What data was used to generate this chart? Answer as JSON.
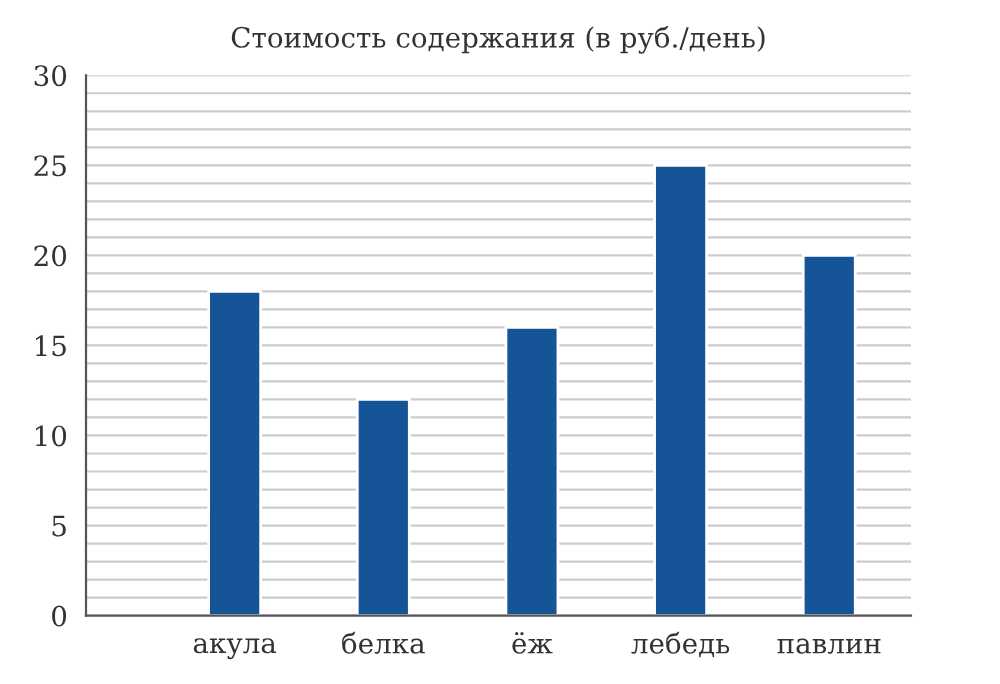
{
  "chart_data": {
    "type": "bar",
    "title": "Стоимость содержания (в руб./день)",
    "categories": [
      "акула",
      "белка",
      "ёж",
      "лебедь",
      "павлин"
    ],
    "values": [
      18,
      12,
      16,
      25,
      20
    ],
    "color": "#155497",
    "ylim": [
      0,
      30
    ],
    "yticks": [
      0,
      {
        "value": 1,
        "label": null
      },
      {
        "value": 2,
        "label": null
      },
      {
        "value": 3,
        "label": null
      },
      {
        "value": 4,
        "label": null
      },
      5,
      {
        "value": 6,
        "label": null
      },
      {
        "value": 7,
        "label": null
      },
      {
        "value": 8,
        "label": null
      },
      {
        "value": 9,
        "label": null
      },
      10,
      {
        "value": 11,
        "label": null
      },
      {
        "value": 12,
        "label": null
      },
      {
        "value": 13,
        "label": null
      },
      {
        "value": 14,
        "label": null
      },
      15,
      {
        "value": 16,
        "label": null
      },
      {
        "value": 17,
        "label": null
      },
      {
        "value": 18,
        "label": null
      },
      {
        "value": 19,
        "label": null
      },
      20,
      {
        "value": 21,
        "label": null
      },
      {
        "value": 22,
        "label": null
      },
      {
        "value": 23,
        "label": null
      },
      {
        "value": 24,
        "label": null
      },
      25,
      {
        "value": 26,
        "label": null
      },
      {
        "value": 27,
        "label": null
      },
      {
        "value": 28,
        "label": null
      },
      {
        "value": 29,
        "label": null
      },
      30
    ],
    "grid": "y"
  }
}
